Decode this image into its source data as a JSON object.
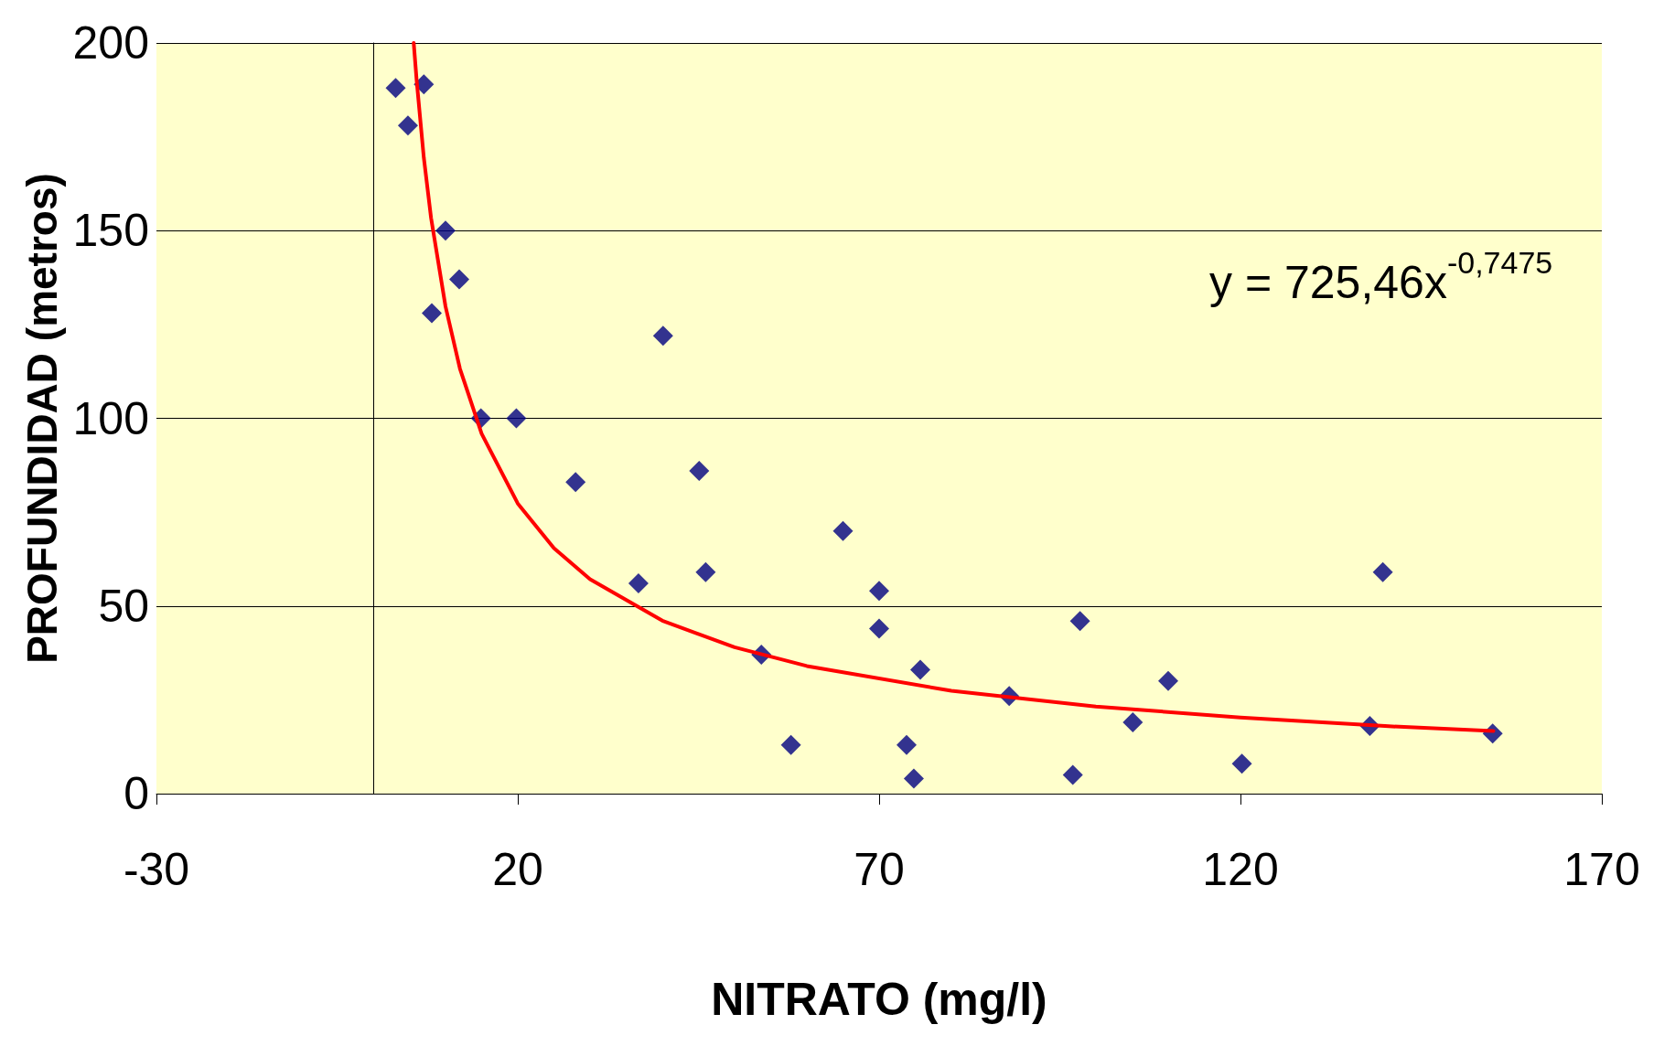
{
  "chart_data": {
    "type": "scatter",
    "xlabel": "NITRATO (mg/l)",
    "ylabel": "PROFUNDIDAD (metros)",
    "annotations": [
      "y = 725,46x$^{-0,7475}$"
    ],
    "xlim": [
      -30,
      170
    ],
    "xticks": [
      -30,
      20,
      70,
      120,
      170
    ],
    "ylim": [
      0,
      200
    ],
    "yticks": [
      0,
      50,
      100,
      150,
      200
    ],
    "grid": "y",
    "marker": "diamond",
    "series": [
      {
        "color": "#000080",
        "x": [
          3.1,
          4.8,
          7.0,
          8.1,
          10.0,
          11.9,
          14.9,
          19.8,
          28.0,
          36.7,
          40.1,
          45.1,
          46.0,
          53.7,
          57.8,
          65.0,
          70.0,
          70.0,
          73.8,
          74.8,
          75.7,
          88.0,
          96.8,
          97.8,
          105.1,
          110.0,
          120.2,
          137.9,
          139.7,
          154.9
        ],
        "values": [
          188,
          178,
          189,
          128,
          150,
          137,
          100,
          100,
          83,
          56,
          122,
          86,
          59,
          37,
          13,
          70,
          54,
          44,
          13,
          4,
          33,
          26,
          5,
          46,
          19,
          30,
          8,
          18,
          59,
          16
        ]
      },
      {
        "type": "line",
        "color": "#ff0000",
        "marker": "none",
        "line_style": "solid",
        "x": [
          5.6,
          6,
          7,
          8,
          10,
          12,
          15,
          20,
          25,
          30,
          40,
          50,
          60,
          80,
          100,
          120,
          140,
          155
        ],
        "values": [
          200,
          190.2,
          169.4,
          153.4,
          129.8,
          113.2,
          95.9,
          77.3,
          65.4,
          57.1,
          46.1,
          39.0,
          34.0,
          27.4,
          23.2,
          20.3,
          18.0,
          16.7
        ]
      }
    ]
  }
}
